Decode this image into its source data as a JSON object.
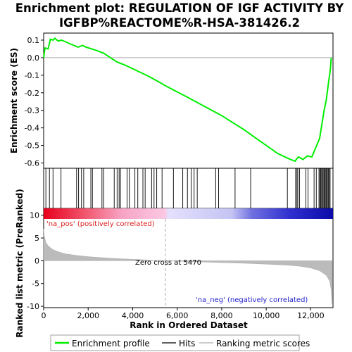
{
  "title_line1": "Enrichment plot: REGULATION OF IGF ACTIVITY BY",
  "title_line2": "IGFBP%REACTOME%R-HSA-381426.2",
  "chart_data": [
    {
      "type": "line",
      "panel": "enrichment-profile",
      "ylabel": "Enrichment score (ES)",
      "ylim": [
        -0.63,
        0.14
      ],
      "xlim": [
        0,
        13000
      ],
      "yticks": [
        0.1,
        0.0,
        -0.1,
        -0.2,
        -0.3,
        -0.4,
        -0.5,
        -0.6
      ],
      "ytick_labels": [
        "0.1",
        "0.0",
        "-0.1",
        "-0.2",
        "-0.3",
        "-0.4",
        "-0.5",
        "-0.6"
      ],
      "grid": false,
      "series": [
        {
          "name": "Enrichment profile",
          "color": "#00ee00",
          "points": [
            [
              0,
              0.0
            ],
            [
              60,
              0.055
            ],
            [
              200,
              0.05
            ],
            [
              270,
              0.085
            ],
            [
              300,
              0.105
            ],
            [
              420,
              0.1
            ],
            [
              500,
              0.11
            ],
            [
              650,
              0.095
            ],
            [
              800,
              0.1
            ],
            [
              1000,
              0.09
            ],
            [
              1200,
              0.078
            ],
            [
              1400,
              0.068
            ],
            [
              1550,
              0.06
            ],
            [
              1650,
              0.065
            ],
            [
              1750,
              0.07
            ],
            [
              1900,
              0.06
            ],
            [
              2100,
              0.052
            ],
            [
              2400,
              0.04
            ],
            [
              2700,
              0.025
            ],
            [
              3000,
              0.0
            ],
            [
              3300,
              -0.025
            ],
            [
              3700,
              -0.045
            ],
            [
              4200,
              -0.075
            ],
            [
              4700,
              -0.105
            ],
            [
              5200,
              -0.14
            ],
            [
              5470,
              -0.16
            ],
            [
              6000,
              -0.195
            ],
            [
              6500,
              -0.228
            ],
            [
              7000,
              -0.262
            ],
            [
              7500,
              -0.296
            ],
            [
              8000,
              -0.33
            ],
            [
              8500,
              -0.37
            ],
            [
              9000,
              -0.41
            ],
            [
              9500,
              -0.455
            ],
            [
              10000,
              -0.5
            ],
            [
              10500,
              -0.545
            ],
            [
              11000,
              -0.575
            ],
            [
              11300,
              -0.59
            ],
            [
              11350,
              -0.58
            ],
            [
              11450,
              -0.565
            ],
            [
              11650,
              -0.58
            ],
            [
              11850,
              -0.56
            ],
            [
              12050,
              -0.565
            ],
            [
              12200,
              -0.52
            ],
            [
              12400,
              -0.46
            ],
            [
              12500,
              -0.38
            ],
            [
              12600,
              -0.3
            ],
            [
              12700,
              -0.24
            ],
            [
              12800,
              -0.14
            ],
            [
              12880,
              -0.07
            ],
            [
              12920,
              0.0
            ]
          ]
        }
      ]
    },
    {
      "type": "scatter",
      "panel": "hits",
      "series": [
        {
          "name": "Hits",
          "color": "#000000",
          "x": [
            100,
            260,
            420,
            780,
            1480,
            1570,
            1700,
            1800,
            2120,
            2190,
            2620,
            2700,
            3170,
            3300,
            3390,
            3450,
            3750,
            3850,
            4100,
            4230,
            4460,
            4560,
            4850,
            4960,
            5080,
            5320,
            5830,
            6250,
            6460,
            6630,
            6760,
            6900,
            7730,
            7860,
            8600,
            9300,
            10950,
            11320,
            11380,
            11420,
            11500,
            11780,
            11880,
            12150,
            12250,
            12370,
            12410,
            12450,
            12490,
            12520,
            12560,
            12600,
            12640,
            12680,
            12710,
            12750,
            12790,
            12830,
            12870
          ]
        }
      ]
    },
    {
      "type": "area",
      "panel": "ranked-list-metric",
      "ylabel": "Ranked list metric (PreRanked)",
      "xlabel": "Rank in Ordered Dataset",
      "ylim": [
        -10.3,
        11.5
      ],
      "xlim": [
        0,
        13000
      ],
      "yticks": [
        10,
        5,
        0,
        -5,
        -10
      ],
      "ytick_labels": [
        "10",
        "5",
        "0",
        "-5",
        "-10"
      ],
      "xticks": [
        0,
        2000,
        4000,
        6000,
        8000,
        10000,
        12000
      ],
      "xtick_labels": [
        "0",
        "2,000",
        "4,000",
        "6,000",
        "8,000",
        "10,000",
        "12,000"
      ],
      "series": [
        {
          "name": "Ranking metric scores",
          "color": "#bbbbbb",
          "points": [
            [
              0,
              7.0
            ],
            [
              30,
              5.5
            ],
            [
              100,
              4.0
            ],
            [
              200,
              3.3
            ],
            [
              400,
              2.5
            ],
            [
              700,
              1.9
            ],
            [
              1000,
              1.5
            ],
            [
              1500,
              1.15
            ],
            [
              2000,
              0.9
            ],
            [
              3000,
              0.55
            ],
            [
              4000,
              0.3
            ],
            [
              5000,
              0.1
            ],
            [
              5470,
              0.0
            ],
            [
              6000,
              -0.1
            ],
            [
              7000,
              -0.25
            ],
            [
              8000,
              -0.4
            ],
            [
              9000,
              -0.55
            ],
            [
              10000,
              -0.75
            ],
            [
              11000,
              -1.0
            ],
            [
              11500,
              -1.2
            ],
            [
              12000,
              -1.6
            ],
            [
              12400,
              -2.2
            ],
            [
              12700,
              -3.2
            ],
            [
              12850,
              -4.5
            ],
            [
              12920,
              -6.5
            ],
            [
              12960,
              -9.5
            ]
          ]
        }
      ],
      "annotations": {
        "positive": "'na_pos' (positively correlated)",
        "zero_cross": "Zero cross at 5470",
        "negative": "'na_neg' (negatively correlated)"
      },
      "zero_cross": 5470
    }
  ],
  "legend": {
    "placement": "bottom",
    "items": [
      {
        "label": "Enrichment profile",
        "color": "#00ee00"
      },
      {
        "label": "Hits",
        "color": "#000000"
      },
      {
        "label": "Ranking metric scores",
        "color": "#bbbbbb"
      }
    ]
  },
  "colors": {
    "positive_gradient_start": "#e8001b",
    "positive_gradient_end": "#ffb6d4",
    "negative_gradient_start": "#d4d4fa",
    "negative_gradient_end": "#1010c0",
    "annotation_pos": "#dd2222",
    "annotation_neg": "#2222cc"
  }
}
